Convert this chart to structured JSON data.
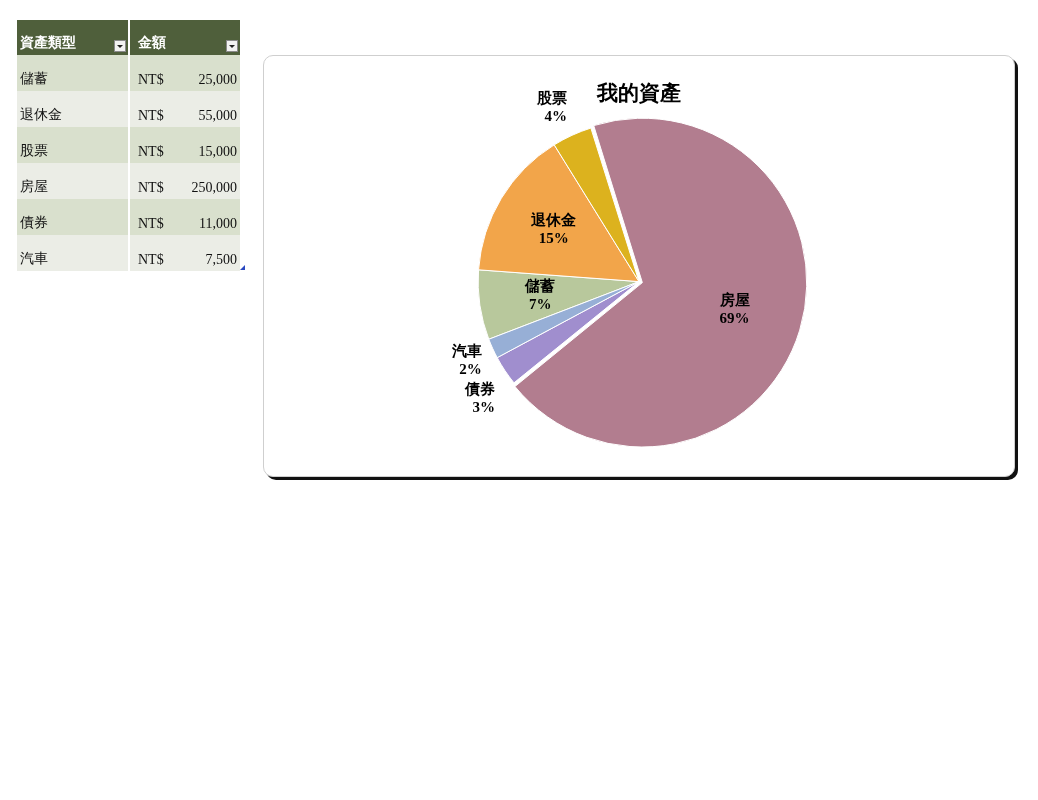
{
  "chart_data": [
    {
      "type": "other",
      "annotations": [
        "資產類型",
        "金額"
      ],
      "categories": [
        "儲蓄",
        "退休金",
        "股票",
        "房屋",
        "債券",
        "汽車"
      ],
      "value_labels": [
        "NT$ 25,000",
        "NT$ 55,000",
        "NT$ 15,000",
        "NT$ 250,000",
        "NT$ 11,000",
        "NT$ 7,500"
      ]
    },
    {
      "type": "pie",
      "title": "我的資產",
      "categories": [
        "儲蓄",
        "退休金",
        "股票",
        "房屋",
        "債券",
        "汽車"
      ],
      "values": [
        7,
        15,
        4,
        69,
        3,
        2
      ],
      "colors": [
        "#b8c89c",
        "#f2a54a",
        "#dcb21e",
        "#b27d8f",
        "#a08ece",
        "#97afd6"
      ],
      "value_labels": [
        "7%",
        "15%",
        "4%",
        "69%",
        "3%",
        "2%"
      ]
    }
  ]
}
